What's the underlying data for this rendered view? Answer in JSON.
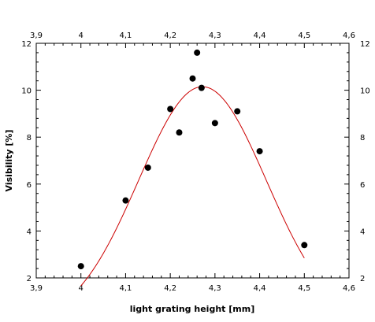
{
  "chart_data": {
    "type": "scatter",
    "xlabel": "light grating height [mm]",
    "ylabel": "Visibility [%]",
    "xlim": [
      3.9,
      4.6
    ],
    "ylim": [
      2,
      12
    ],
    "x_ticks": [
      3.9,
      4.0,
      4.1,
      4.2,
      4.3,
      4.4,
      4.5,
      4.6
    ],
    "x_tick_labels": [
      "3,9",
      "4",
      "4,1",
      "4,2",
      "4,3",
      "4,4",
      "4,5",
      "4,6"
    ],
    "y_ticks": [
      2,
      4,
      6,
      8,
      10,
      12
    ],
    "y_tick_labels": [
      "2",
      "4",
      "6",
      "8",
      "10",
      "12"
    ],
    "grid": false,
    "points": {
      "x": [
        4.0,
        4.1,
        4.15,
        4.2,
        4.22,
        4.25,
        4.26,
        4.27,
        4.3,
        4.35,
        4.4,
        4.5
      ],
      "y": [
        2.5,
        5.3,
        6.7,
        9.2,
        8.2,
        10.5,
        11.6,
        10.1,
        8.6,
        9.1,
        7.4,
        3.4
      ],
      "color": "#000000"
    },
    "fit_curve": {
      "type": "gaussian",
      "amplitude": 10.15,
      "center": 4.272,
      "sigma": 0.143,
      "offset": 0,
      "x_range": [
        4.0,
        4.5
      ],
      "color": "#cc0000"
    }
  }
}
